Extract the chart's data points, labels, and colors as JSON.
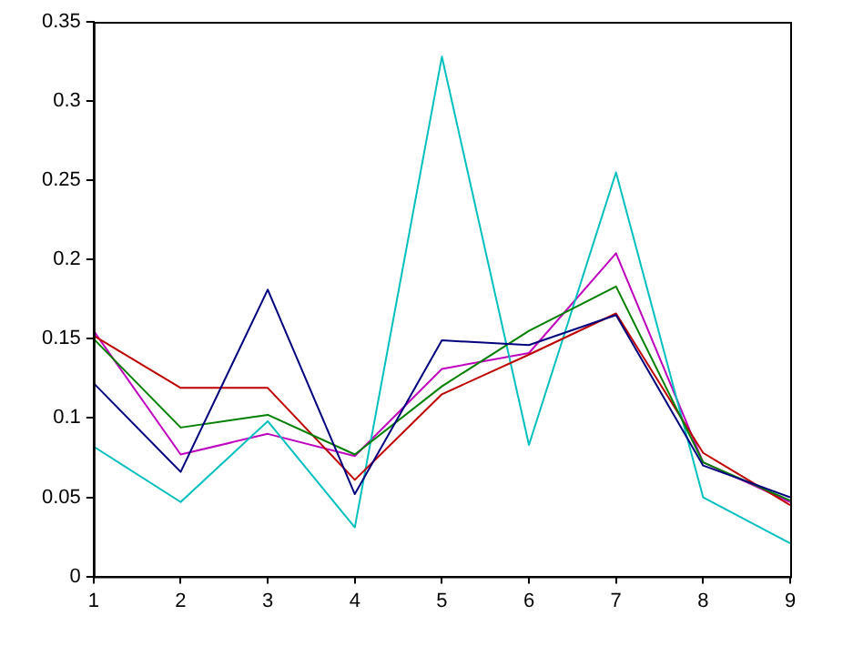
{
  "chart_data": {
    "type": "line",
    "x": [
      1,
      2,
      3,
      4,
      5,
      6,
      7,
      8,
      9
    ],
    "xlim": [
      1,
      9
    ],
    "xticks": [
      1,
      2,
      3,
      4,
      5,
      6,
      7,
      8,
      9
    ],
    "ylim": [
      0,
      0.35
    ],
    "yticks": [
      0,
      0.05,
      0.1,
      0.15,
      0.2,
      0.25,
      0.3,
      0.35
    ],
    "grid": false,
    "legend": false,
    "marker": "none",
    "line_style": "solid",
    "series": [
      {
        "color": "#00007f",
        "values": [
          0.122,
          0.066,
          0.181,
          0.052,
          0.149,
          0.146,
          0.165,
          0.07,
          0.05
        ]
      },
      {
        "color": "#007f00",
        "values": [
          0.15,
          0.094,
          0.102,
          0.077,
          0.12,
          0.155,
          0.183,
          0.072,
          0.048
        ]
      },
      {
        "color": "#bf0000",
        "values": [
          0.152,
          0.119,
          0.119,
          0.061,
          0.115,
          0.14,
          0.166,
          0.078,
          0.045
        ]
      },
      {
        "color": "#00bfbf",
        "values": [
          0.082,
          0.047,
          0.098,
          0.031,
          0.328,
          0.083,
          0.255,
          0.05,
          0.021
        ]
      },
      {
        "color": "#bf00bf",
        "values": [
          0.155,
          0.077,
          0.09,
          0.076,
          0.131,
          0.141,
          0.204,
          0.072,
          0.047
        ]
      }
    ]
  }
}
